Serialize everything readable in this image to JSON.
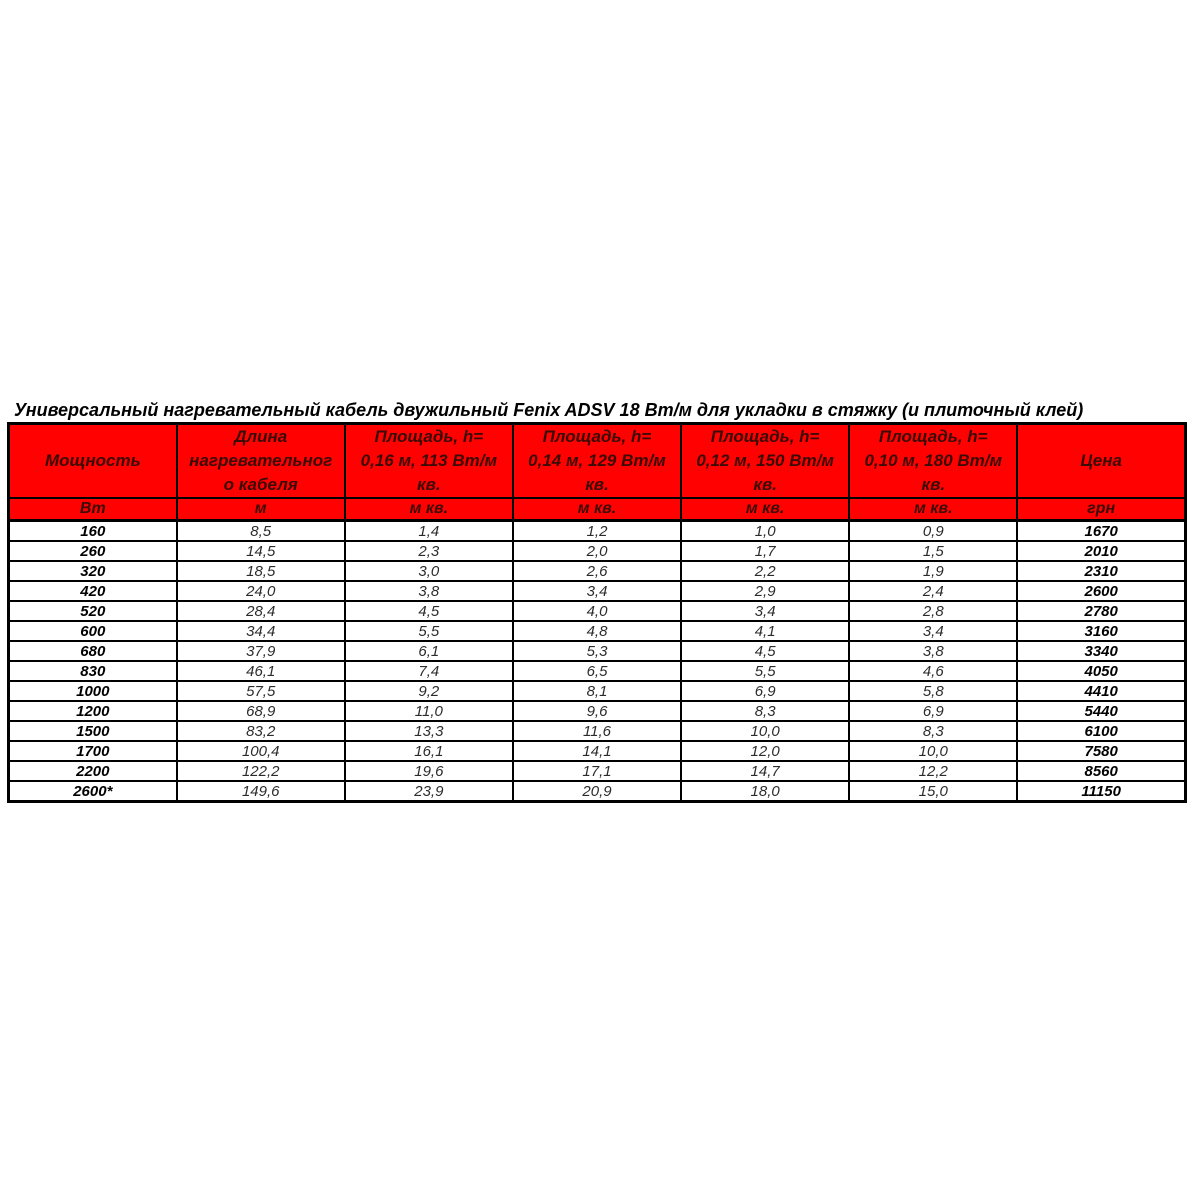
{
  "page": {
    "title": "Универсальный нагревательный кабель двужильный Fenix ADSV 18 Вт/м для укладки в стяжку (и плиточный клей)",
    "background_color": "#ffffff"
  },
  "table": {
    "header_background_color": "#fe0100",
    "header_text_color": "#3b0b06",
    "border_color": "#000000",
    "columns": [
      {
        "lines": [
          "Мощность"
        ],
        "unit": "Вт"
      },
      {
        "lines": [
          "Длина",
          "нагревательног",
          "о кабеля"
        ],
        "unit": "м"
      },
      {
        "lines": [
          "Площадь, h=",
          "0,16 м, 113 Вт/м",
          "кв."
        ],
        "unit": "м кв."
      },
      {
        "lines": [
          "Площадь, h=",
          "0,14 м, 129 Вт/м",
          "кв."
        ],
        "unit": "м кв."
      },
      {
        "lines": [
          "Площадь, h=",
          "0,12 м, 150 Вт/м",
          "кв."
        ],
        "unit": "м кв."
      },
      {
        "lines": [
          "Площадь, h=",
          "0,10 м, 180 Вт/м",
          "кв."
        ],
        "unit": "м кв."
      },
      {
        "lines": [
          "Цена"
        ],
        "unit": "грн"
      }
    ],
    "rows": [
      [
        "160",
        "8,5",
        "1,4",
        "1,2",
        "1,0",
        "0,9",
        "1670"
      ],
      [
        "260",
        "14,5",
        "2,3",
        "2,0",
        "1,7",
        "1,5",
        "2010"
      ],
      [
        "320",
        "18,5",
        "3,0",
        "2,6",
        "2,2",
        "1,9",
        "2310"
      ],
      [
        "420",
        "24,0",
        "3,8",
        "3,4",
        "2,9",
        "2,4",
        "2600"
      ],
      [
        "520",
        "28,4",
        "4,5",
        "4,0",
        "3,4",
        "2,8",
        "2780"
      ],
      [
        "600",
        "34,4",
        "5,5",
        "4,8",
        "4,1",
        "3,4",
        "3160"
      ],
      [
        "680",
        "37,9",
        "6,1",
        "5,3",
        "4,5",
        "3,8",
        "3340"
      ],
      [
        "830",
        "46,1",
        "7,4",
        "6,5",
        "5,5",
        "4,6",
        "4050"
      ],
      [
        "1000",
        "57,5",
        "9,2",
        "8,1",
        "6,9",
        "5,8",
        "4410"
      ],
      [
        "1200",
        "68,9",
        "11,0",
        "9,6",
        "8,3",
        "6,9",
        "5440"
      ],
      [
        "1500",
        "83,2",
        "13,3",
        "11,6",
        "10,0",
        "8,3",
        "6100"
      ],
      [
        "1700",
        "100,4",
        "16,1",
        "14,1",
        "12,0",
        "10,0",
        "7580"
      ],
      [
        "2200",
        "122,2",
        "19,6",
        "17,1",
        "14,7",
        "12,2",
        "8560"
      ],
      [
        "2600*",
        "149,6",
        "23,9",
        "20,9",
        "18,0",
        "15,0",
        "11150"
      ]
    ]
  }
}
